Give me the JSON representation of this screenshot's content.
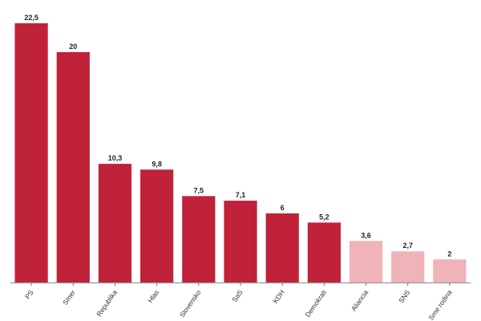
{
  "chart_data": {
    "type": "bar",
    "title": "",
    "xlabel": "",
    "ylabel": "",
    "categories": [
      "PS",
      "Smer",
      "Republika",
      "Hlas",
      "Slovensko",
      "SaS",
      "KDH",
      "Demokrati",
      "Aliancia",
      "SNS",
      "Sme rodina"
    ],
    "values": [
      22.5,
      20,
      10.3,
      9.8,
      7.5,
      7.1,
      6,
      5.2,
      3.6,
      2.7,
      2
    ],
    "value_labels": [
      "22,5",
      "20",
      "10,3",
      "9,8",
      "7,5",
      "7,1",
      "6",
      "5,2",
      "3,6",
      "2,7",
      "2"
    ],
    "highlight": [
      true,
      true,
      true,
      true,
      true,
      true,
      true,
      true,
      false,
      false,
      false
    ],
    "ylim": [
      0,
      22.5
    ],
    "grid": false,
    "colors": {
      "primary": "#c0223a",
      "secondary": "#efb3b8",
      "axis": "#999999"
    }
  }
}
